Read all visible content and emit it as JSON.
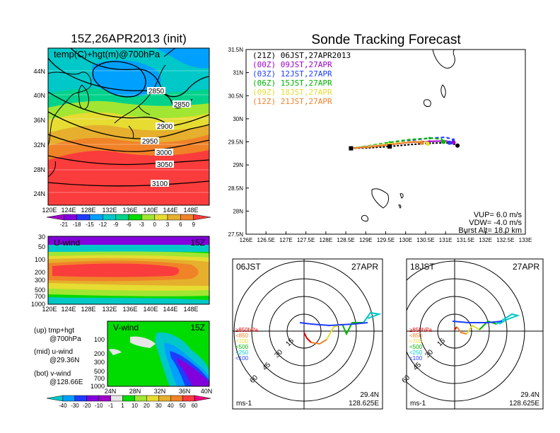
{
  "left": {
    "title": "15Z,26APR2013 (init)",
    "map_label": "temp(C)+hgt(m)@700hPa",
    "lat_ticks": [
      "44N",
      "40N",
      "36N",
      "32N",
      "28N",
      "24N"
    ],
    "lon_ticks": [
      "120E",
      "124E",
      "128E",
      "132E",
      "136E",
      "140E",
      "144E",
      "148E"
    ],
    "contours": [
      "2850",
      "2850",
      "2900",
      "2950",
      "3000",
      "3050",
      "3100"
    ],
    "temp_colorbar": {
      "labels": [
        "-21",
        "-18",
        "-15",
        "-12",
        "-9",
        "-6",
        "-3",
        "0",
        "3",
        "6",
        "9"
      ],
      "colors": [
        "#a000c8",
        "#8200dc",
        "#1e3cff",
        "#00a0ff",
        "#00c8c8",
        "#00d28c",
        "#00dc00",
        "#a0e632",
        "#e6dc32",
        "#e6af2d",
        "#f08228",
        "#fa3c3c"
      ]
    },
    "uwind": {
      "label": "U-wind",
      "time": "15Z",
      "p_ticks": [
        "30",
        "50",
        "100",
        "200",
        "300",
        "500",
        "700",
        "1000"
      ],
      "lon_ticks": [
        "120E",
        "124E",
        "128E",
        "132E",
        "136E",
        "140E",
        "144E",
        "148E"
      ]
    },
    "vwind": {
      "label": "V-wind",
      "time": "15Z",
      "p_ticks": [
        "100",
        "200",
        "300",
        "500",
        "700",
        "1000"
      ],
      "lat_ticks": [
        "24N",
        "28N",
        "32N",
        "36N",
        "40N"
      ]
    },
    "notes": [
      "(up) tmp+hgt",
      "@700hPa",
      "(mid) u-wind",
      "@29.36N",
      "(bot) v-wind",
      "@128.66E"
    ],
    "wind_colorbar": {
      "labels": [
        "-40",
        "-30",
        "-20",
        "-10",
        "-1",
        "1",
        "10",
        "20",
        "30",
        "40",
        "50",
        "60"
      ],
      "colors": [
        "#00c8c8",
        "#00a0ff",
        "#1e3cff",
        "#8200dc",
        "#a000c8",
        "#e6e6e6",
        "#00dc00",
        "#a0e632",
        "#e6dc32",
        "#e6af2d",
        "#f08228",
        "#fa3c3c",
        "#f00082"
      ]
    }
  },
  "chart_data": {
    "type": "line",
    "title": "Sonde Tracking Forecast",
    "xlim": [
      126,
      133
    ],
    "ylim": [
      27.5,
      31.5
    ],
    "x_ticks": [
      "126E",
      "126.5E",
      "127E",
      "127.5E",
      "128E",
      "128.5E",
      "129E",
      "129.5E",
      "130E",
      "130.5E",
      "131E",
      "131.5E",
      "132E",
      "132.5E",
      "133E"
    ],
    "y_ticks": [
      "27.5N",
      "28N",
      "28.5N",
      "29N",
      "29.5N",
      "30N",
      "30.5N",
      "31N",
      "31.5N"
    ],
    "series": [
      {
        "name": "(21Z)  06JST,27APR2013",
        "color": "#000000",
        "dash": "3,2",
        "x": [
          128.63,
          129.1,
          129.6,
          130.1,
          130.6,
          131.0,
          131.2,
          131.3
        ],
        "y": [
          29.36,
          29.37,
          29.4,
          29.44,
          29.47,
          29.48,
          29.46,
          29.42
        ]
      },
      {
        "name": "(00Z)  09JST,27APR",
        "color": "#a000c8",
        "dash": "",
        "x": [
          128.63,
          129.1,
          129.6,
          130.1,
          130.6,
          131.0,
          131.2
        ],
        "y": [
          29.36,
          29.4,
          29.44,
          29.49,
          29.51,
          29.52,
          29.49
        ]
      },
      {
        "name": "(03Z)  12JST,27APR",
        "color": "#1e3cff",
        "dash": "5,3",
        "x": [
          128.63,
          129.1,
          129.6,
          130.1,
          130.6,
          131.0,
          131.2,
          131.1
        ],
        "y": [
          29.36,
          29.4,
          29.46,
          29.53,
          29.58,
          29.6,
          29.55,
          29.48
        ]
      },
      {
        "name": "(06Z)  15JST,27APR",
        "color": "#00b400",
        "dash": "5,3",
        "x": [
          128.63,
          129.1,
          129.6,
          130.1,
          130.6,
          130.9,
          130.95
        ],
        "y": [
          29.36,
          29.42,
          29.49,
          29.55,
          29.58,
          29.56,
          29.5
        ]
      },
      {
        "name": "(09Z)  18JST,27APR",
        "color": "#e6dc32",
        "dash": "5,3",
        "x": [
          128.63,
          129.1,
          129.6,
          130.0,
          130.4,
          130.6,
          130.55
        ],
        "y": [
          29.36,
          29.41,
          29.46,
          29.5,
          29.51,
          29.49,
          29.46
        ]
      },
      {
        "name": "(12Z)  21JST,27APR",
        "color": "#f08228",
        "dash": "",
        "x": [
          128.63,
          129.1,
          129.5,
          129.9,
          130.2,
          130.4
        ],
        "y": [
          29.36,
          29.39,
          29.43,
          29.47,
          29.5,
          29.48
        ]
      }
    ],
    "params": [
      "VUP=  6.0  m/s",
      "VDW= -4.0  m/s",
      "Burst Alt=  18.0  km"
    ]
  },
  "hodographs": [
    {
      "time": "06JST",
      "date": "27APR",
      "lat": "29.4N",
      "lon": "128.625E",
      "unit": "ms-1",
      "rings": [
        "15",
        "30",
        "45",
        "60"
      ],
      "legend": [
        "≥850hPa",
        "<850",
        "<700",
        "<500",
        "<250",
        "<100"
      ],
      "legend_colors": [
        "#e60000",
        "#f08228",
        "#e6dc32",
        "#00b400",
        "#00c8c8",
        "#1e3cff"
      ]
    },
    {
      "time": "18JST",
      "date": "27APR",
      "lat": "29.4N",
      "lon": "128.625E",
      "unit": "ms-1",
      "rings": [
        "15",
        "30",
        "45",
        "60"
      ],
      "legend": [
        "≥850hPa",
        "<850",
        "<700",
        "<500",
        "<250",
        "<100"
      ],
      "legend_colors": [
        "#e60000",
        "#f08228",
        "#e6dc32",
        "#00b400",
        "#00c8c8",
        "#1e3cff"
      ]
    }
  ]
}
